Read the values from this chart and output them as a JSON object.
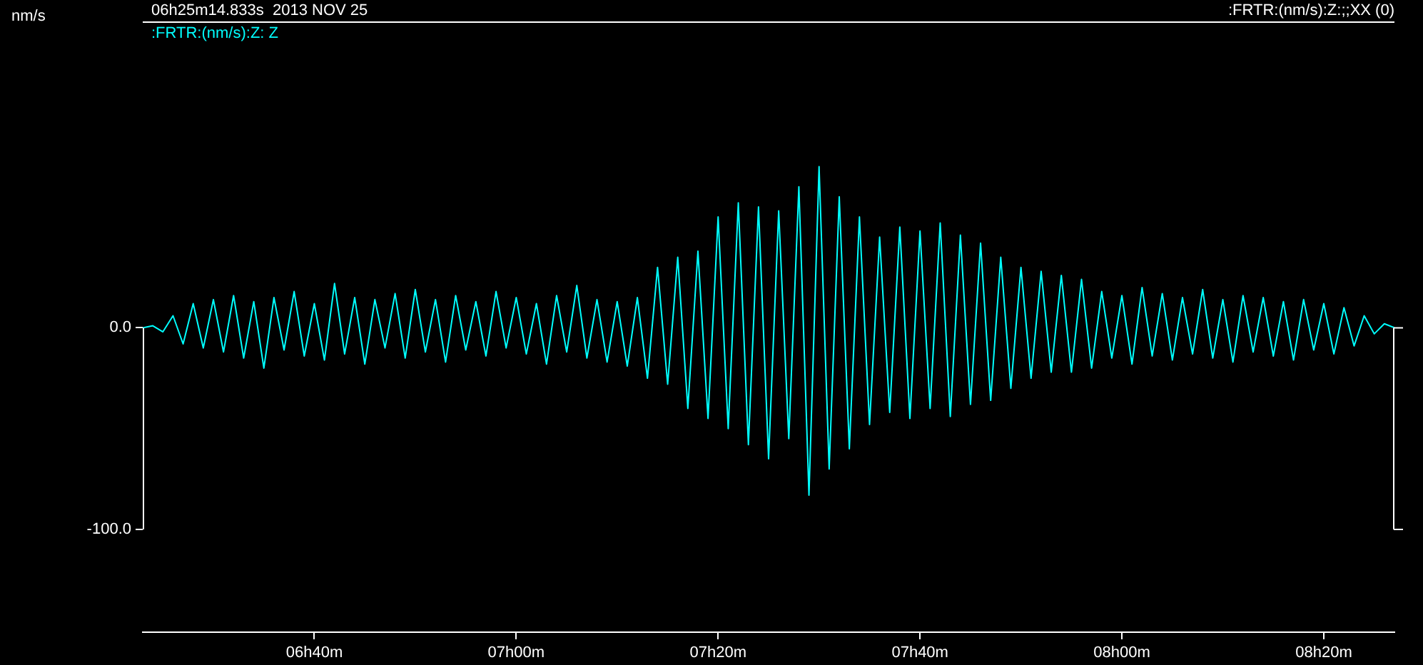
{
  "chart_data": {
    "type": "line",
    "title": "06h25m14.833s  2013 NOV 25",
    "ylabel": "nm/s",
    "annotations": [
      ":FRTR:(nm/s):Z:;;XX (0)"
    ],
    "legend": "top left",
    "marker": "none",
    "grid": false,
    "xlim": [
      "2013-11-25T06:23",
      "2013-11-25T08:27"
    ],
    "xticks": [
      {
        "value": "2013-11-25T06:40",
        "label": "06h40m"
      },
      {
        "value": "2013-11-25T07:00",
        "label": "07h00m"
      },
      {
        "value": "2013-11-25T07:20",
        "label": "07h20m"
      },
      {
        "value": "2013-11-25T07:40",
        "label": "07h40m"
      },
      {
        "value": "2013-11-25T08:00",
        "label": "08h00m"
      },
      {
        "value": "2013-11-25T08:20",
        "label": "08h20m"
      }
    ],
    "ylim": [
      -151,
      152
    ],
    "yticks": [
      {
        "value": 0,
        "label": "0.0"
      },
      {
        "value": -100,
        "label": "-100.0"
      }
    ],
    "series": [
      {
        "name": ":FRTR:(nm/s):Z: Z",
        "color": "#00ffff",
        "x": [
          "2013-11-25T06:23",
          "2013-11-25T06:24",
          "2013-11-25T06:25",
          "2013-11-25T06:26",
          "2013-11-25T06:27",
          "2013-11-25T06:28",
          "2013-11-25T06:29",
          "2013-11-25T06:30",
          "2013-11-25T06:31",
          "2013-11-25T06:32",
          "2013-11-25T06:33",
          "2013-11-25T06:34",
          "2013-11-25T06:35",
          "2013-11-25T06:36",
          "2013-11-25T06:37",
          "2013-11-25T06:38",
          "2013-11-25T06:39",
          "2013-11-25T06:40",
          "2013-11-25T06:41",
          "2013-11-25T06:42",
          "2013-11-25T06:43",
          "2013-11-25T06:44",
          "2013-11-25T06:45",
          "2013-11-25T06:46",
          "2013-11-25T06:47",
          "2013-11-25T06:48",
          "2013-11-25T06:49",
          "2013-11-25T06:50",
          "2013-11-25T06:51",
          "2013-11-25T06:52",
          "2013-11-25T06:53",
          "2013-11-25T06:54",
          "2013-11-25T06:55",
          "2013-11-25T06:56",
          "2013-11-25T06:57",
          "2013-11-25T06:58",
          "2013-11-25T06:59",
          "2013-11-25T07:00",
          "2013-11-25T07:01",
          "2013-11-25T07:02",
          "2013-11-25T07:03",
          "2013-11-25T07:04",
          "2013-11-25T07:05",
          "2013-11-25T07:06",
          "2013-11-25T07:07",
          "2013-11-25T07:08",
          "2013-11-25T07:09",
          "2013-11-25T07:10",
          "2013-11-25T07:11",
          "2013-11-25T07:12",
          "2013-11-25T07:13",
          "2013-11-25T07:14",
          "2013-11-25T07:15",
          "2013-11-25T07:16",
          "2013-11-25T07:17",
          "2013-11-25T07:18",
          "2013-11-25T07:19",
          "2013-11-25T07:20",
          "2013-11-25T07:21",
          "2013-11-25T07:22",
          "2013-11-25T07:23",
          "2013-11-25T07:24",
          "2013-11-25T07:25",
          "2013-11-25T07:26",
          "2013-11-25T07:27",
          "2013-11-25T07:28",
          "2013-11-25T07:29",
          "2013-11-25T07:30",
          "2013-11-25T07:31",
          "2013-11-25T07:32",
          "2013-11-25T07:33",
          "2013-11-25T07:34",
          "2013-11-25T07:35",
          "2013-11-25T07:36",
          "2013-11-25T07:37",
          "2013-11-25T07:38",
          "2013-11-25T07:39",
          "2013-11-25T07:40",
          "2013-11-25T07:41",
          "2013-11-25T07:42",
          "2013-11-25T07:43",
          "2013-11-25T07:44",
          "2013-11-25T07:45",
          "2013-11-25T07:46",
          "2013-11-25T07:47",
          "2013-11-25T07:48",
          "2013-11-25T07:49",
          "2013-11-25T07:50",
          "2013-11-25T07:51",
          "2013-11-25T07:52",
          "2013-11-25T07:53",
          "2013-11-25T07:54",
          "2013-11-25T07:55",
          "2013-11-25T07:56",
          "2013-11-25T07:57",
          "2013-11-25T07:58",
          "2013-11-25T07:59",
          "2013-11-25T08:00",
          "2013-11-25T08:01",
          "2013-11-25T08:02",
          "2013-11-25T08:03",
          "2013-11-25T08:04",
          "2013-11-25T08:05",
          "2013-11-25T08:06",
          "2013-11-25T08:07",
          "2013-11-25T08:08",
          "2013-11-25T08:09",
          "2013-11-25T08:10",
          "2013-11-25T08:11",
          "2013-11-25T08:12",
          "2013-11-25T08:13",
          "2013-11-25T08:14",
          "2013-11-25T08:15",
          "2013-11-25T08:16",
          "2013-11-25T08:17",
          "2013-11-25T08:18",
          "2013-11-25T08:19",
          "2013-11-25T08:20",
          "2013-11-25T08:21",
          "2013-11-25T08:22",
          "2013-11-25T08:23",
          "2013-11-25T08:24",
          "2013-11-25T08:25",
          "2013-11-25T08:26",
          "2013-11-25T08:27"
        ],
        "values": [
          0,
          1,
          -2,
          6,
          -8,
          12,
          -10,
          14,
          -12,
          16,
          -15,
          13,
          -20,
          15,
          -11,
          18,
          -14,
          12,
          -16,
          22,
          -13,
          15,
          -18,
          14,
          -10,
          17,
          -15,
          19,
          -12,
          14,
          -17,
          16,
          -11,
          13,
          -14,
          18,
          -10,
          15,
          -13,
          12,
          -18,
          16,
          -12,
          21,
          -15,
          14,
          -17,
          13,
          -19,
          15,
          -25,
          30,
          -28,
          35,
          -40,
          38,
          -45,
          55,
          -50,
          62,
          -58,
          60,
          -65,
          58,
          -55,
          70,
          -83,
          80,
          -70,
          65,
          -60,
          55,
          -48,
          45,
          -42,
          50,
          -45,
          48,
          -40,
          52,
          -44,
          46,
          -38,
          42,
          -36,
          35,
          -30,
          30,
          -25,
          28,
          -22,
          26,
          -22,
          24,
          -20,
          18,
          -15,
          16,
          -18,
          20,
          -14,
          17,
          -16,
          15,
          -13,
          19,
          -15,
          14,
          -17,
          16,
          -12,
          15,
          -14,
          13,
          -16,
          14,
          -11,
          12,
          -13,
          10,
          -9,
          6,
          -3,
          2,
          0
        ]
      }
    ]
  }
}
